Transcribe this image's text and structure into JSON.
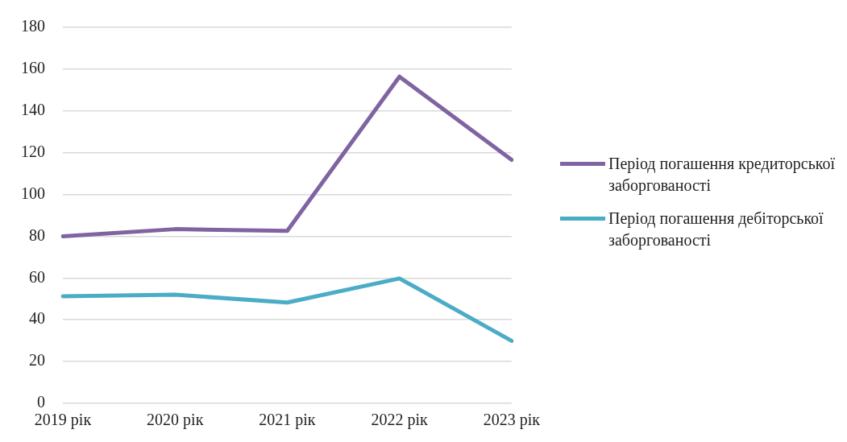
{
  "chart_data": {
    "type": "line",
    "categories": [
      "2019 рік",
      "2020 рік",
      "2021 рік",
      "2022 рік",
      "2023 рік"
    ],
    "series": [
      {
        "name": "Період погашення кредиторської заборгованості",
        "color": "#8064a2",
        "values": [
          80,
          83.4,
          82.6,
          156.4,
          116.6
        ]
      },
      {
        "name": "Період погашення дебіторської заборгованості",
        "color": "#4bacc6",
        "values": [
          51.3,
          52,
          48.3,
          59.8,
          29.9
        ]
      }
    ],
    "ylim": [
      0,
      180
    ],
    "yticks": [
      0,
      20,
      40,
      60,
      80,
      100,
      120,
      140,
      160,
      180
    ],
    "grid": "y",
    "legend": "right",
    "marker": "none",
    "line_style": "solid"
  }
}
